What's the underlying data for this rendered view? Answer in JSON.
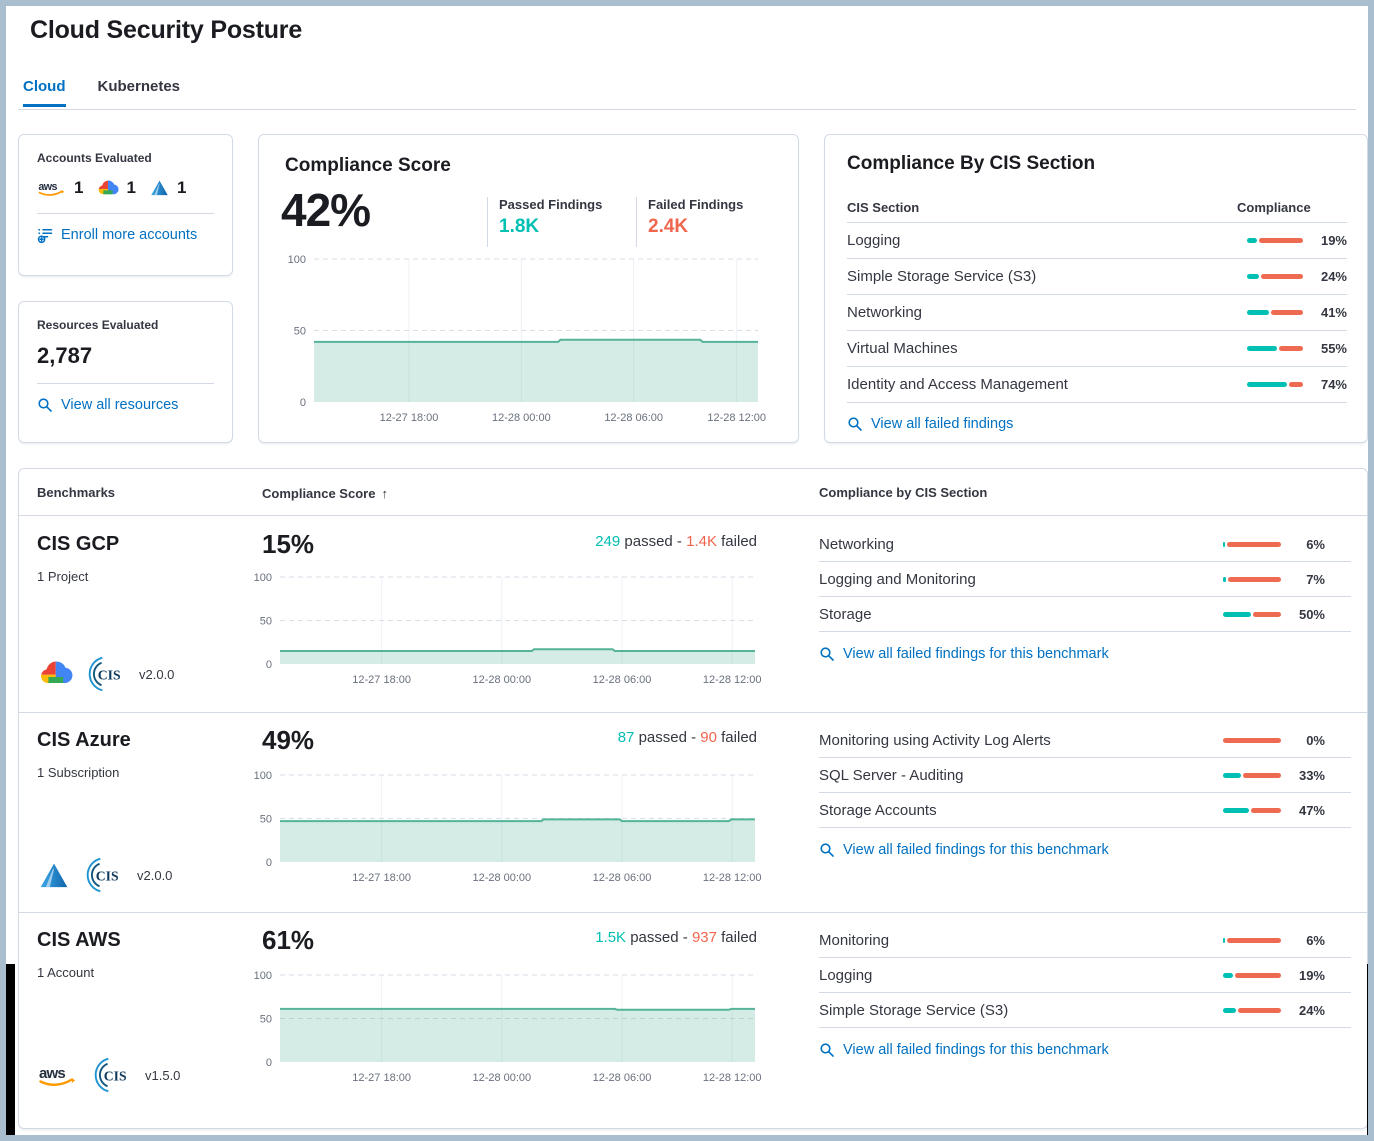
{
  "page": {
    "title": "Cloud Security Posture"
  },
  "tabs": {
    "cloud": "Cloud",
    "kubernetes": "Kubernetes"
  },
  "colors": {
    "teal": "#00bfb3",
    "coral": "#ee6a50",
    "link": "#0071c2",
    "chart_line": "#54b399"
  },
  "accounts_card": {
    "title": "Accounts Evaluated",
    "providers": [
      {
        "name": "aws",
        "count": "1"
      },
      {
        "name": "gcp",
        "count": "1"
      },
      {
        "name": "azure",
        "count": "1"
      }
    ],
    "link": "Enroll more accounts"
  },
  "resources_card": {
    "title": "Resources Evaluated",
    "value": "2,787",
    "link": "View all resources"
  },
  "score_card": {
    "title": "Compliance Score",
    "score": "42%",
    "passed_label": "Passed Findings",
    "passed_value": "1.8K",
    "failed_label": "Failed Findings",
    "failed_value": "2.4K"
  },
  "cis_card": {
    "title": "Compliance By CIS Section",
    "columns": {
      "section": "CIS Section",
      "compliance": "Compliance"
    },
    "rows": [
      {
        "name": "Logging",
        "pct": 19,
        "label": "19%"
      },
      {
        "name": "Simple Storage Service (S3)",
        "pct": 24,
        "label": "24%"
      },
      {
        "name": "Networking",
        "pct": 41,
        "label": "41%"
      },
      {
        "name": "Virtual Machines",
        "pct": 55,
        "label": "55%"
      },
      {
        "name": "Identity and Access Management",
        "pct": 74,
        "label": "74%"
      }
    ],
    "link": "View all failed findings"
  },
  "benchmarks": {
    "columns": {
      "benchmarks": "Benchmarks",
      "score": "Compliance Score",
      "sort": "↑",
      "sections": "Compliance by CIS Section"
    },
    "passed_word": "passed -",
    "failed_word": "failed",
    "link": "View all failed findings for this benchmark",
    "rows": [
      {
        "name": "CIS GCP",
        "scope": "1 Project",
        "score": "15%",
        "passed": "249",
        "failed": "1.4K",
        "version": "v2.0.0",
        "sections": [
          {
            "name": "Networking",
            "pct": 6,
            "label": "6%"
          },
          {
            "name": "Logging and Monitoring",
            "pct": 7,
            "label": "7%"
          },
          {
            "name": "Storage",
            "pct": 50,
            "label": "50%"
          }
        ]
      },
      {
        "name": "CIS Azure",
        "scope": "1 Subscription",
        "score": "49%",
        "passed": "87",
        "failed": "90",
        "version": "v2.0.0",
        "sections": [
          {
            "name": "Monitoring using Activity Log Alerts",
            "pct": 0,
            "label": "0%"
          },
          {
            "name": "SQL Server - Auditing",
            "pct": 33,
            "label": "33%"
          },
          {
            "name": "Storage Accounts",
            "pct": 47,
            "label": "47%"
          }
        ]
      },
      {
        "name": "CIS AWS",
        "scope": "1 Account",
        "score": "61%",
        "passed": "1.5K",
        "failed": "937",
        "version": "v1.5.0",
        "sections": [
          {
            "name": "Monitoring",
            "pct": 6,
            "label": "6%"
          },
          {
            "name": "Logging",
            "pct": 19,
            "label": "19%"
          },
          {
            "name": "Simple Storage Service (S3)",
            "pct": 24,
            "label": "24%"
          }
        ]
      }
    ]
  },
  "chart_data": [
    {
      "type": "area",
      "name": "overall-compliance-trend",
      "title": "Compliance Score",
      "ylim": [
        0,
        100
      ],
      "yticks": [
        0,
        50,
        100
      ],
      "grid": true,
      "legend": "none",
      "x_ticks": [
        "12-27 18:00",
        "12-28 00:00",
        "12-28 06:00",
        "12-28 12:00"
      ],
      "points": [
        [
          0,
          42
        ],
        [
          0.55,
          42
        ],
        [
          0.555,
          43.5
        ],
        [
          0.87,
          43.5
        ],
        [
          0.875,
          42
        ],
        [
          1,
          42
        ]
      ],
      "line_color": "#54b399",
      "fill_color": "rgba(84,179,153,0.25)"
    },
    {
      "type": "area",
      "name": "cis-gcp-trend",
      "title": "CIS GCP Compliance Score",
      "ylim": [
        0,
        100
      ],
      "yticks": [
        0,
        50,
        100
      ],
      "grid": true,
      "legend": "none",
      "x_ticks": [
        "12-27 18:00",
        "12-28 00:00",
        "12-28 06:00",
        "12-28 12:00"
      ],
      "points": [
        [
          0,
          15
        ],
        [
          0.53,
          15
        ],
        [
          0.535,
          17
        ],
        [
          0.7,
          17
        ],
        [
          0.705,
          15
        ],
        [
          1,
          15
        ]
      ],
      "line_color": "#54b399",
      "fill_color": "rgba(84,179,153,0.25)"
    },
    {
      "type": "area",
      "name": "cis-azure-trend",
      "title": "CIS Azure Compliance Score",
      "ylim": [
        0,
        100
      ],
      "yticks": [
        0,
        50,
        100
      ],
      "grid": true,
      "legend": "none",
      "x_ticks": [
        "12-27 18:00",
        "12-28 00:00",
        "12-28 06:00",
        "12-28 12:00"
      ],
      "points": [
        [
          0,
          47
        ],
        [
          0.55,
          47
        ],
        [
          0.555,
          49
        ],
        [
          0.715,
          49
        ],
        [
          0.72,
          47
        ],
        [
          0.945,
          47
        ],
        [
          0.95,
          49
        ],
        [
          1,
          49
        ]
      ],
      "line_color": "#54b399",
      "fill_color": "rgba(84,179,153,0.25)"
    },
    {
      "type": "area",
      "name": "cis-aws-trend",
      "title": "CIS AWS Compliance Score",
      "ylim": [
        0,
        100
      ],
      "yticks": [
        0,
        50,
        100
      ],
      "grid": true,
      "legend": "none",
      "x_ticks": [
        "12-27 18:00",
        "12-28 00:00",
        "12-28 06:00",
        "12-28 12:00"
      ],
      "points": [
        [
          0,
          61
        ],
        [
          0.705,
          61
        ],
        [
          0.71,
          60
        ],
        [
          0.945,
          60
        ],
        [
          0.95,
          61
        ],
        [
          1,
          61
        ]
      ],
      "line_color": "#54b399",
      "fill_color": "rgba(84,179,153,0.25)"
    }
  ]
}
